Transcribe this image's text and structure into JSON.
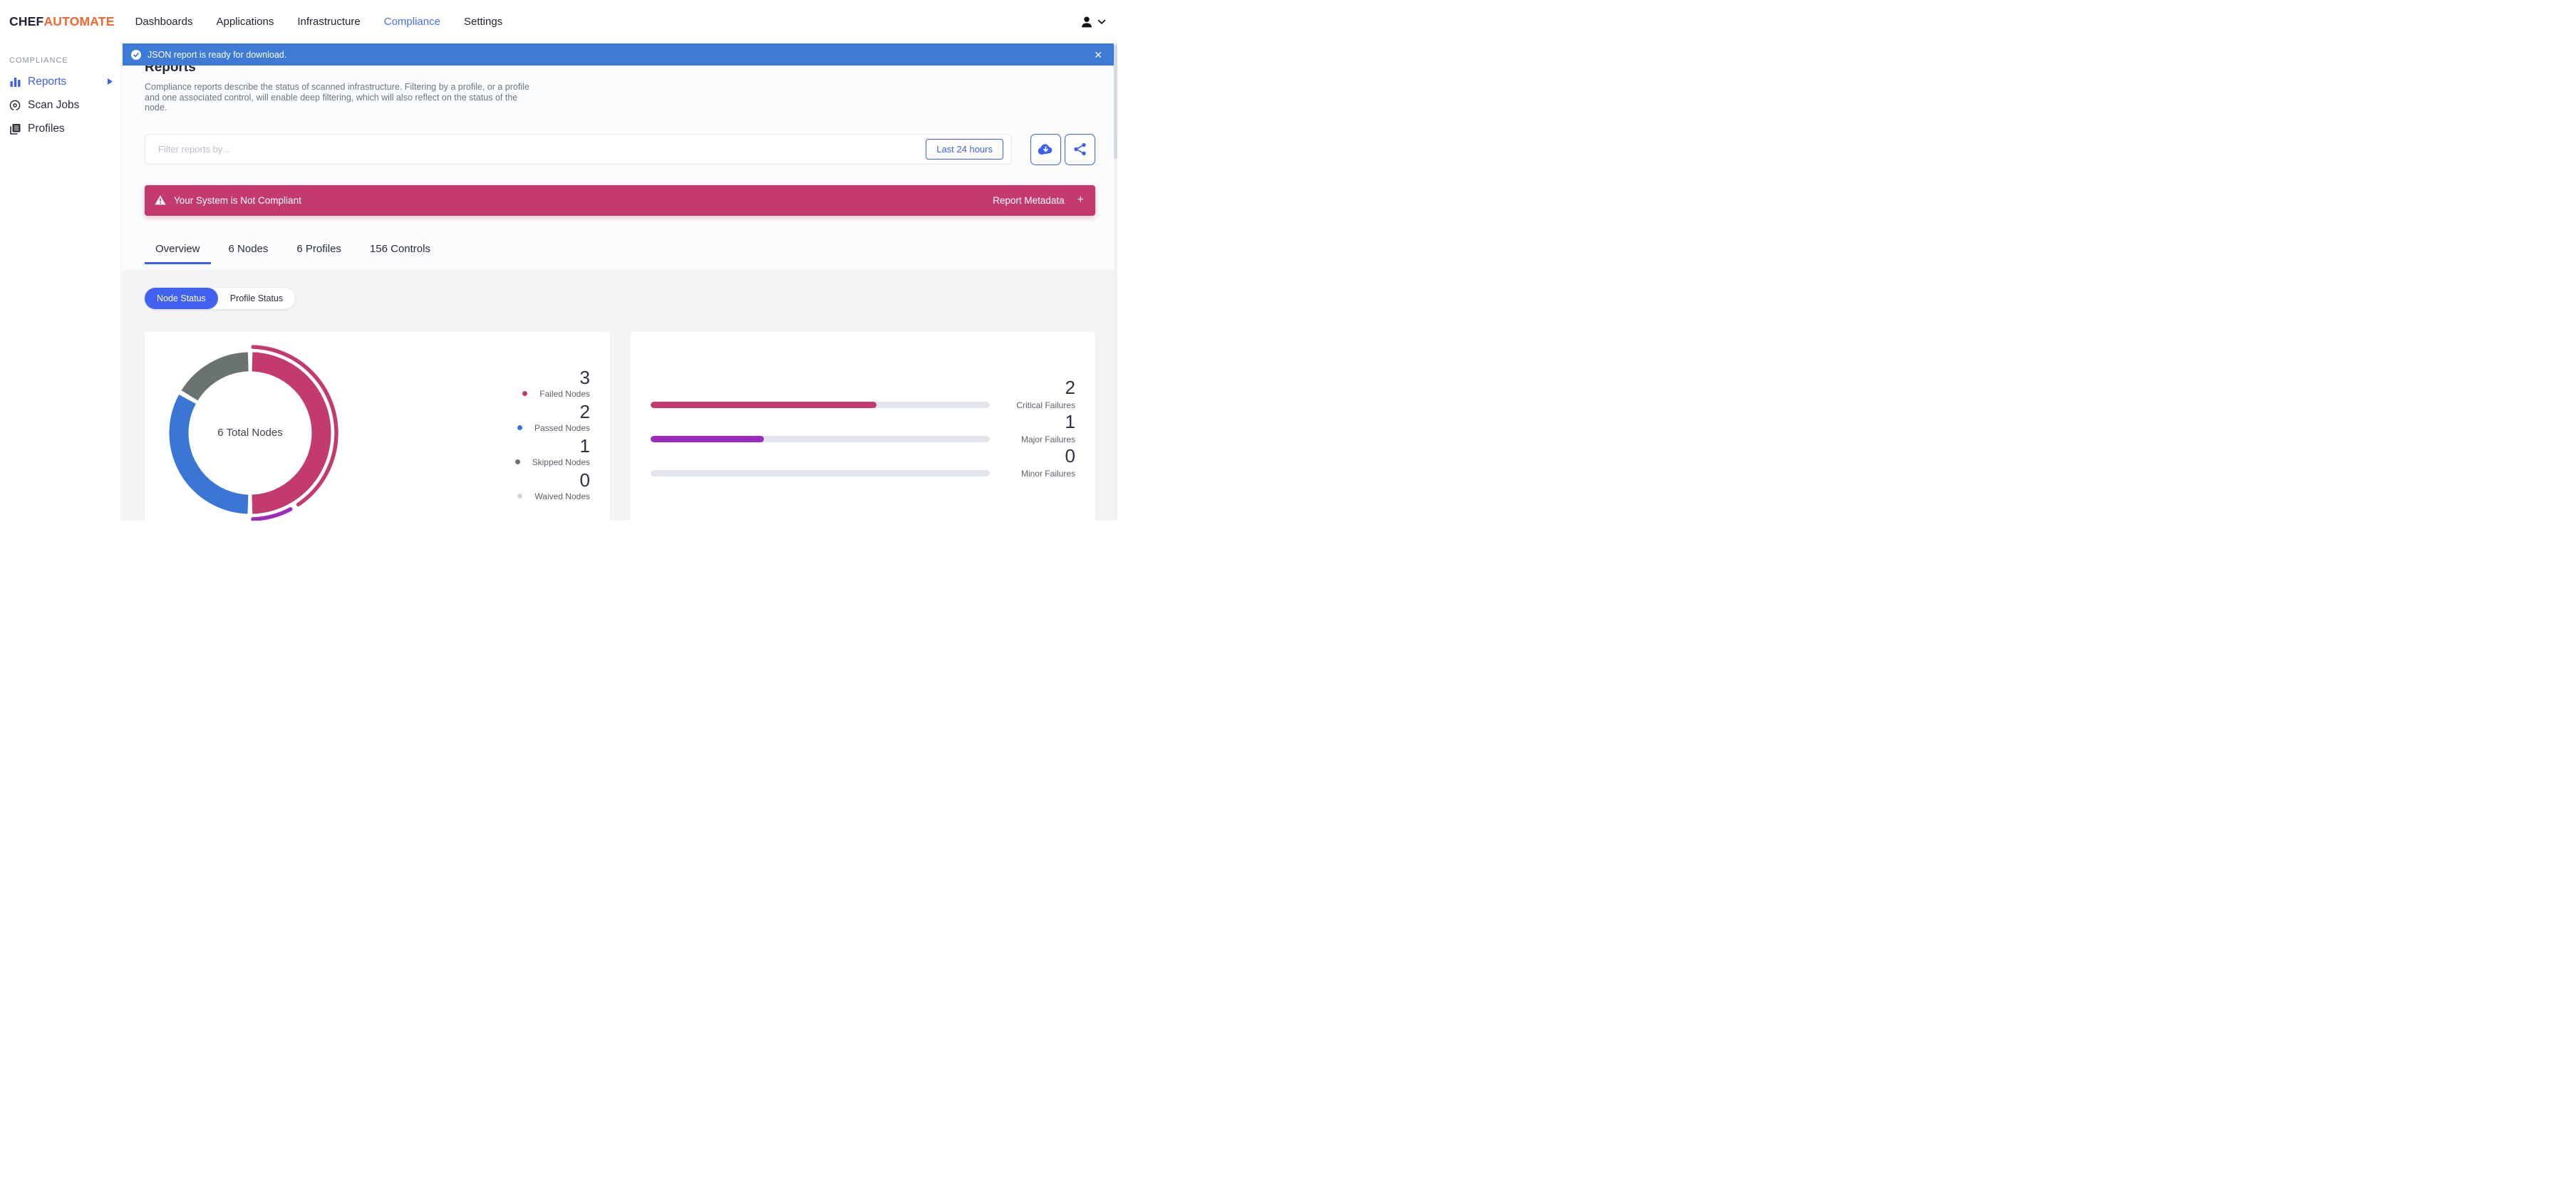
{
  "theme": {
    "accent_blue": "#3c5ff2",
    "banner_blue": "#3d7bd7",
    "critical_pink": "#c23a6e",
    "major_purple": "#9c2bbd",
    "passed_blue": "#3b76d4",
    "skipped_gray": "#6b7272",
    "waived_gray": "#cdd7de",
    "orange": "#f2672f"
  },
  "nav": {
    "logo": {
      "chef": "CHEF",
      "automate": "AUTOMATE"
    },
    "items": [
      {
        "label": "Dashboards",
        "active": false
      },
      {
        "label": "Applications",
        "active": false
      },
      {
        "label": "Infrastructure",
        "active": false
      },
      {
        "label": "Compliance",
        "active": true
      },
      {
        "label": "Settings",
        "active": false
      }
    ]
  },
  "download_banner": {
    "message": "JSON report is ready for download.",
    "close_glyph": "✕"
  },
  "sidebar": {
    "section": "COMPLIANCE",
    "items": [
      {
        "label": "Reports",
        "icon": "bar-chart-icon",
        "active": true,
        "has_caret": true
      },
      {
        "label": "Scan Jobs",
        "icon": "scanner-icon",
        "active": false,
        "has_caret": false
      },
      {
        "label": "Profiles",
        "icon": "profiles-icon",
        "active": false,
        "has_caret": false
      }
    ]
  },
  "page": {
    "title": "Reports",
    "description": "Compliance reports describe the status of scanned infrastructure. Filtering by a profile, or a profile and one associated control, will enable deep filtering, which will also reflect on the status of the node."
  },
  "filter": {
    "placeholder": "Filter reports by...",
    "time_range": "Last 24 hours"
  },
  "alert": {
    "message": "Your System is Not Compliant",
    "metadata_label": "Report Metadata",
    "expand_glyph": "+"
  },
  "tabs": [
    {
      "label": "Overview",
      "active": true
    },
    {
      "label": "6 Nodes",
      "active": false
    },
    {
      "label": "6 Profiles",
      "active": false
    },
    {
      "label": "156 Controls",
      "active": false
    }
  ],
  "status_toggle": [
    {
      "label": "Node Status",
      "active": true
    },
    {
      "label": "Profile Status",
      "active": false
    }
  ],
  "chart_data": [
    {
      "type": "pie",
      "subtype": "donut",
      "title": "6 Total Nodes",
      "total": 6,
      "series": [
        {
          "name": "Failed Nodes",
          "value": 3,
          "color": "#c23a6e"
        },
        {
          "name": "Passed Nodes",
          "value": 2,
          "color": "#3b76d4"
        },
        {
          "name": "Skipped Nodes",
          "value": 1,
          "color": "#6b7272"
        },
        {
          "name": "Waived Nodes",
          "value": 0,
          "color": "#cdd7de"
        }
      ],
      "outer_arcs": [
        {
          "color": "#c23a6e",
          "start_deg": 2,
          "end_deg": 146
        },
        {
          "color": "#9c2bbd",
          "start_deg": 152,
          "end_deg": 178
        }
      ],
      "legend_position": "right"
    },
    {
      "type": "bar",
      "orientation": "horizontal",
      "categories": [
        "Critical Failures",
        "Major Failures",
        "Minor Failures"
      ],
      "values": [
        2,
        1,
        0
      ],
      "colors": [
        "#c23a6e",
        "#9c2bbd",
        "#e2e5e9"
      ],
      "xlim": [
        0,
        3
      ]
    }
  ]
}
